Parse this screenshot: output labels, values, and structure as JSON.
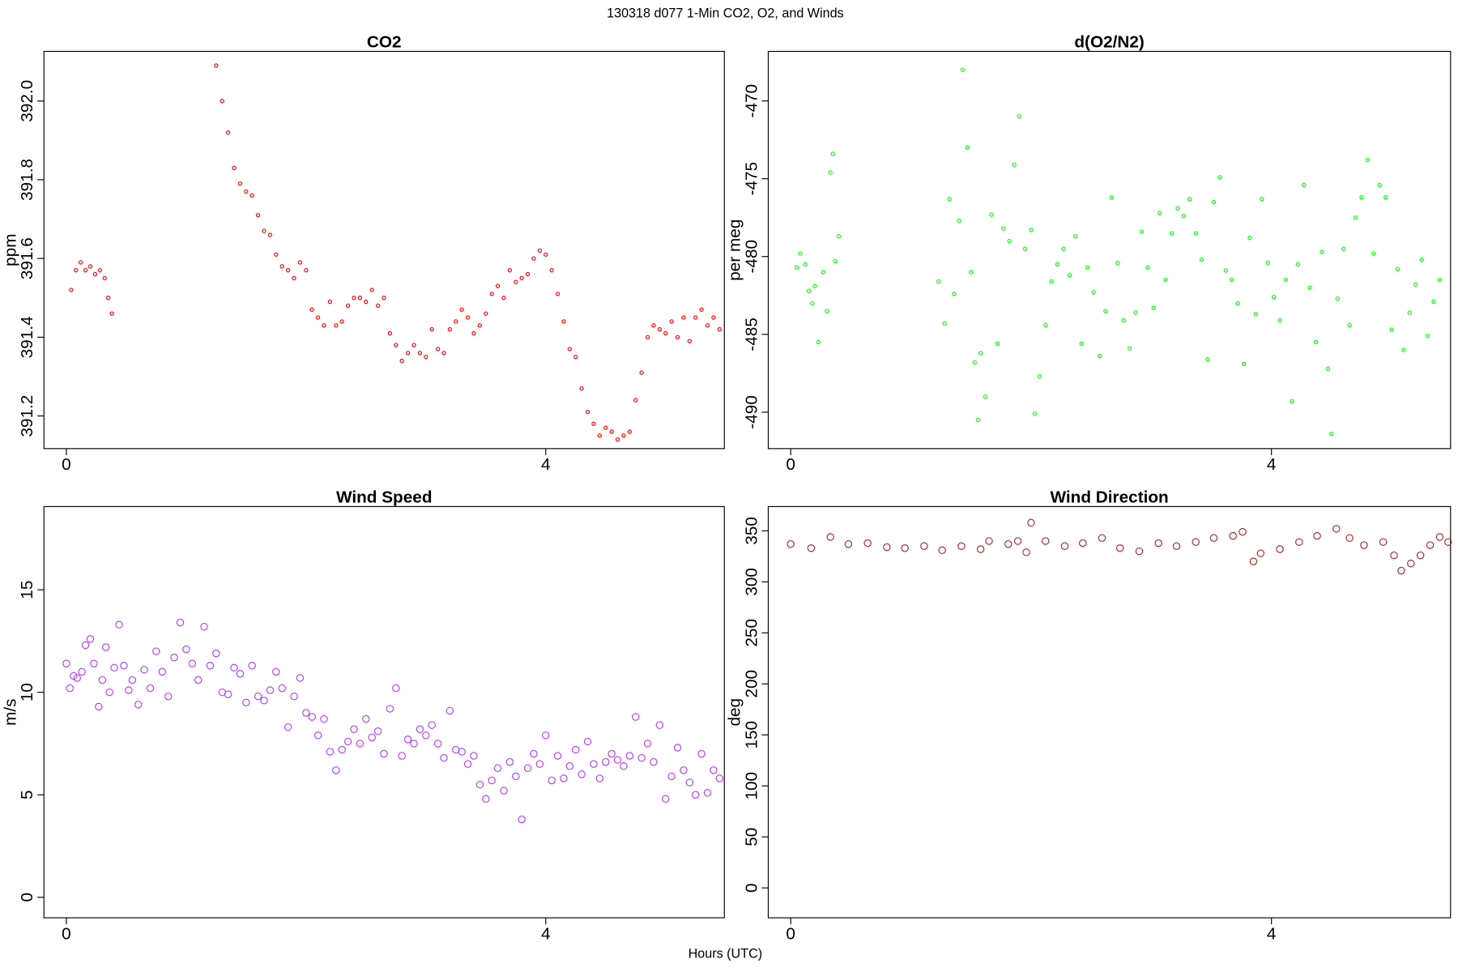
{
  "title": "130318   d077   1-Min CO2, O2, and Winds",
  "x_label": "Hours (UTC)",
  "chart_data": [
    {
      "type": "scatter",
      "title": "CO2",
      "y_label": "ppm",
      "color": "#ff0000",
      "xlim": [
        -0.187,
        5.49
      ],
      "ylim": [
        391.117,
        392.126
      ],
      "xticks": [
        0,
        4
      ],
      "yticks": [
        391.2,
        391.4,
        391.6,
        391.8,
        {
          "value": 392,
          "label": "392.0"
        }
      ],
      "x": [
        0.04,
        0.08,
        0.12,
        0.16,
        0.2,
        0.24,
        0.28,
        0.32,
        0.35,
        0.38,
        1.25,
        1.3,
        1.35,
        1.4,
        1.45,
        1.5,
        1.55,
        1.6,
        1.65,
        1.7,
        1.75,
        1.8,
        1.85,
        1.9,
        1.95,
        2.0,
        2.05,
        2.1,
        2.15,
        2.2,
        2.25,
        2.3,
        2.35,
        2.4,
        2.45,
        2.5,
        2.55,
        2.6,
        2.65,
        2.7,
        2.75,
        2.8,
        2.85,
        2.9,
        2.95,
        3.0,
        3.05,
        3.1,
        3.15,
        3.2,
        3.25,
        3.3,
        3.35,
        3.4,
        3.45,
        3.5,
        3.55,
        3.6,
        3.65,
        3.7,
        3.75,
        3.8,
        3.85,
        3.9,
        3.95,
        4.0,
        4.05,
        4.1,
        4.15,
        4.2,
        4.25,
        4.3,
        4.35,
        4.4,
        4.45,
        4.5,
        4.55,
        4.6,
        4.65,
        4.7,
        4.75,
        4.8,
        4.85,
        4.9,
        4.95,
        5.0,
        5.05,
        5.1,
        5.15,
        5.2,
        5.25,
        5.3,
        5.35,
        5.4,
        5.45
      ],
      "values": [
        391.52,
        391.57,
        391.59,
        391.57,
        391.58,
        391.56,
        391.57,
        391.55,
        391.5,
        391.46,
        392.09,
        392.0,
        391.92,
        391.83,
        391.79,
        391.77,
        391.76,
        391.71,
        391.67,
        391.66,
        391.61,
        391.58,
        391.57,
        391.55,
        391.59,
        391.57,
        391.47,
        391.45,
        391.43,
        391.49,
        391.43,
        391.44,
        391.48,
        391.5,
        391.5,
        391.49,
        391.52,
        391.48,
        391.5,
        391.41,
        391.38,
        391.34,
        391.36,
        391.38,
        391.36,
        391.35,
        391.42,
        391.37,
        391.36,
        391.42,
        391.44,
        391.47,
        391.45,
        391.41,
        391.43,
        391.46,
        391.51,
        391.53,
        391.5,
        391.57,
        391.54,
        391.55,
        391.56,
        391.6,
        391.62,
        391.61,
        391.57,
        391.51,
        391.44,
        391.37,
        391.35,
        391.27,
        391.21,
        391.18,
        391.15,
        391.17,
        391.16,
        391.14,
        391.15,
        391.16,
        391.24,
        391.31,
        391.4,
        391.43,
        391.42,
        391.41,
        391.44,
        391.4,
        391.45,
        391.39,
        391.45,
        391.47,
        391.43,
        391.45,
        391.42
      ]
    },
    {
      "type": "scatter",
      "title": "d(O2/N2)",
      "y_label": "per meg",
      "color": "#00ff00",
      "xlim": [
        -0.187,
        5.49
      ],
      "ylim": [
        -492.34,
        -466.82
      ],
      "xticks": [
        0,
        4
      ],
      "yticks": [
        -490,
        -485,
        -480,
        -475,
        -470
      ],
      "x": [
        0.05,
        0.08,
        0.12,
        0.15,
        0.18,
        0.2,
        0.23,
        0.27,
        0.3,
        0.33,
        0.35,
        0.37,
        0.4,
        1.23,
        1.28,
        1.32,
        1.36,
        1.4,
        1.43,
        1.47,
        1.5,
        1.53,
        1.56,
        1.58,
        1.62,
        1.67,
        1.72,
        1.77,
        1.82,
        1.86,
        1.9,
        1.95,
        2.0,
        2.03,
        2.07,
        2.12,
        2.17,
        2.22,
        2.27,
        2.32,
        2.37,
        2.42,
        2.47,
        2.52,
        2.57,
        2.62,
        2.67,
        2.72,
        2.77,
        2.82,
        2.87,
        2.92,
        2.97,
        3.02,
        3.07,
        3.12,
        3.17,
        3.22,
        3.27,
        3.32,
        3.37,
        3.42,
        3.47,
        3.52,
        3.57,
        3.62,
        3.67,
        3.72,
        3.77,
        3.82,
        3.87,
        3.92,
        3.97,
        4.02,
        4.07,
        4.12,
        4.17,
        4.22,
        4.27,
        4.32,
        4.37,
        4.42,
        4.47,
        4.5,
        4.55,
        4.6,
        4.65,
        4.7,
        4.75,
        4.8,
        4.85,
        4.9,
        4.95,
        5.0,
        5.05,
        5.1,
        5.15,
        5.2,
        5.25,
        5.3,
        5.35,
        5.4
      ],
      "values": [
        -480.7,
        -479.8,
        -480.5,
        -482.2,
        -483,
        -481.9,
        -485.5,
        -481,
        -483.5,
        -474.6,
        -473.4,
        -480.3,
        -478.7,
        -481.6,
        -484.3,
        -476.3,
        -482.4,
        -477.7,
        -468,
        -473,
        -481,
        -486.8,
        -490.5,
        -486.2,
        -489,
        -477.3,
        -485.6,
        -478.2,
        -479,
        -474.1,
        -471,
        -479.5,
        -478.3,
        -490.1,
        -487.7,
        -484.4,
        -481.6,
        -480.5,
        -479.5,
        -481.2,
        -478.7,
        -485.6,
        -480.7,
        -482.3,
        -486.4,
        -483.5,
        -476.2,
        -480.4,
        -484.1,
        -485.9,
        -483.6,
        -478.4,
        -480.7,
        -483.3,
        -477.2,
        -481.5,
        -478.5,
        -476.9,
        -477.4,
        -476.3,
        -478.5,
        -480.2,
        -486.6,
        -476.5,
        -474.9,
        -480.9,
        -481.5,
        -483,
        -486.9,
        -478.8,
        -483.7,
        -476.3,
        -480.4,
        -482.6,
        -484.1,
        -481.5,
        -489.3,
        -480.5,
        -475.4,
        -482,
        -485.5,
        -479.7,
        -487.2,
        -491.4,
        -482.7,
        -479.5,
        -484.4,
        -477.5,
        -476.2,
        -473.8,
        -479.8,
        -475.4,
        -476.2,
        -484.7,
        -480.8,
        -486,
        -483.6,
        -481.8,
        -480.2,
        -485.1,
        -482.9,
        -481.5
      ]
    },
    {
      "type": "scatter",
      "title": "Wind Speed",
      "y_label": "m/s",
      "color": "#b040f0",
      "xlim": [
        -0.187,
        5.49
      ],
      "ylim": [
        -1.0,
        19.06
      ],
      "xticks": [
        0,
        4
      ],
      "yticks": [
        0,
        5,
        10,
        15
      ],
      "x": [
        0.0,
        0.03,
        0.06,
        0.09,
        0.13,
        0.16,
        0.2,
        0.23,
        0.27,
        0.3,
        0.33,
        0.36,
        0.4,
        0.44,
        0.48,
        0.52,
        0.55,
        0.6,
        0.65,
        0.7,
        0.75,
        0.8,
        0.85,
        0.9,
        0.95,
        1.0,
        1.05,
        1.1,
        1.15,
        1.2,
        1.25,
        1.3,
        1.35,
        1.4,
        1.45,
        1.5,
        1.55,
        1.6,
        1.65,
        1.7,
        1.75,
        1.8,
        1.85,
        1.9,
        1.95,
        2.0,
        2.05,
        2.1,
        2.15,
        2.2,
        2.25,
        2.3,
        2.35,
        2.4,
        2.45,
        2.5,
        2.55,
        2.6,
        2.65,
        2.7,
        2.75,
        2.8,
        2.85,
        2.9,
        2.95,
        3.0,
        3.05,
        3.1,
        3.15,
        3.2,
        3.25,
        3.3,
        3.35,
        3.4,
        3.45,
        3.5,
        3.55,
        3.6,
        3.65,
        3.7,
        3.75,
        3.8,
        3.85,
        3.9,
        3.95,
        4.0,
        4.05,
        4.1,
        4.15,
        4.2,
        4.25,
        4.3,
        4.35,
        4.4,
        4.45,
        4.5,
        4.55,
        4.6,
        4.65,
        4.7,
        4.75,
        4.8,
        4.85,
        4.9,
        4.95,
        5.0,
        5.05,
        5.1,
        5.15,
        5.2,
        5.25,
        5.3,
        5.35,
        5.4,
        5.45
      ],
      "values": [
        11.4,
        10.2,
        10.8,
        10.7,
        11.0,
        12.3,
        12.6,
        11.4,
        9.3,
        10.6,
        12.2,
        10.0,
        11.2,
        13.3,
        11.3,
        10.1,
        10.6,
        9.4,
        11.1,
        10.2,
        12.0,
        11.0,
        9.8,
        11.7,
        13.4,
        12.1,
        11.4,
        10.6,
        13.2,
        11.3,
        11.9,
        10.0,
        9.9,
        11.2,
        10.9,
        9.5,
        11.3,
        9.8,
        9.6,
        10.1,
        11.0,
        10.2,
        8.3,
        9.8,
        10.7,
        9.0,
        8.8,
        7.9,
        8.7,
        7.1,
        6.2,
        7.2,
        7.6,
        8.2,
        7.5,
        8.7,
        7.8,
        8.1,
        7.0,
        9.2,
        10.2,
        6.9,
        7.7,
        7.5,
        8.2,
        7.9,
        8.4,
        7.5,
        6.8,
        9.1,
        7.2,
        7.1,
        6.5,
        6.9,
        5.5,
        4.8,
        5.7,
        6.3,
        5.2,
        6.6,
        5.9,
        3.8,
        6.3,
        7.0,
        6.5,
        7.9,
        5.7,
        6.9,
        5.8,
        6.4,
        7.2,
        6.0,
        7.6,
        6.5,
        5.8,
        6.6,
        7.0,
        6.7,
        6.4,
        6.9,
        8.8,
        6.8,
        7.5,
        6.6,
        8.4,
        4.8,
        5.9,
        7.3,
        6.2,
        5.6,
        5.0,
        7.0,
        5.1,
        6.2,
        5.8
      ]
    },
    {
      "type": "scatter",
      "title": "Wind Direction",
      "y_label": "deg",
      "color": "#a52a2a",
      "xlim": [
        -0.187,
        5.49
      ],
      "ylim": [
        -29.3,
        373.8
      ],
      "xticks": [
        0,
        4
      ],
      "yticks": [
        0,
        50,
        100,
        150,
        200,
        250,
        300,
        350
      ],
      "x": [
        0.0,
        0.17,
        0.33,
        0.48,
        0.64,
        0.8,
        0.95,
        1.11,
        1.26,
        1.42,
        1.58,
        1.65,
        1.81,
        1.89,
        1.96,
        2.0,
        2.12,
        2.28,
        2.43,
        2.59,
        2.74,
        2.9,
        3.06,
        3.21,
        3.37,
        3.52,
        3.68,
        3.76,
        3.85,
        3.91,
        4.07,
        4.23,
        4.38,
        4.54,
        4.65,
        4.77,
        4.93,
        5.02,
        5.08,
        5.16,
        5.24,
        5.32,
        5.4,
        5.47
      ],
      "values": [
        337,
        333,
        344,
        337,
        338,
        334,
        333,
        335,
        331,
        335,
        332,
        340,
        337,
        340,
        329,
        358,
        340,
        335,
        338,
        343,
        333,
        330,
        338,
        335,
        339,
        343,
        345,
        349,
        320,
        328,
        332,
        339,
        345,
        352,
        343,
        336,
        339,
        326,
        311,
        318,
        326,
        336,
        344,
        339
      ]
    }
  ]
}
